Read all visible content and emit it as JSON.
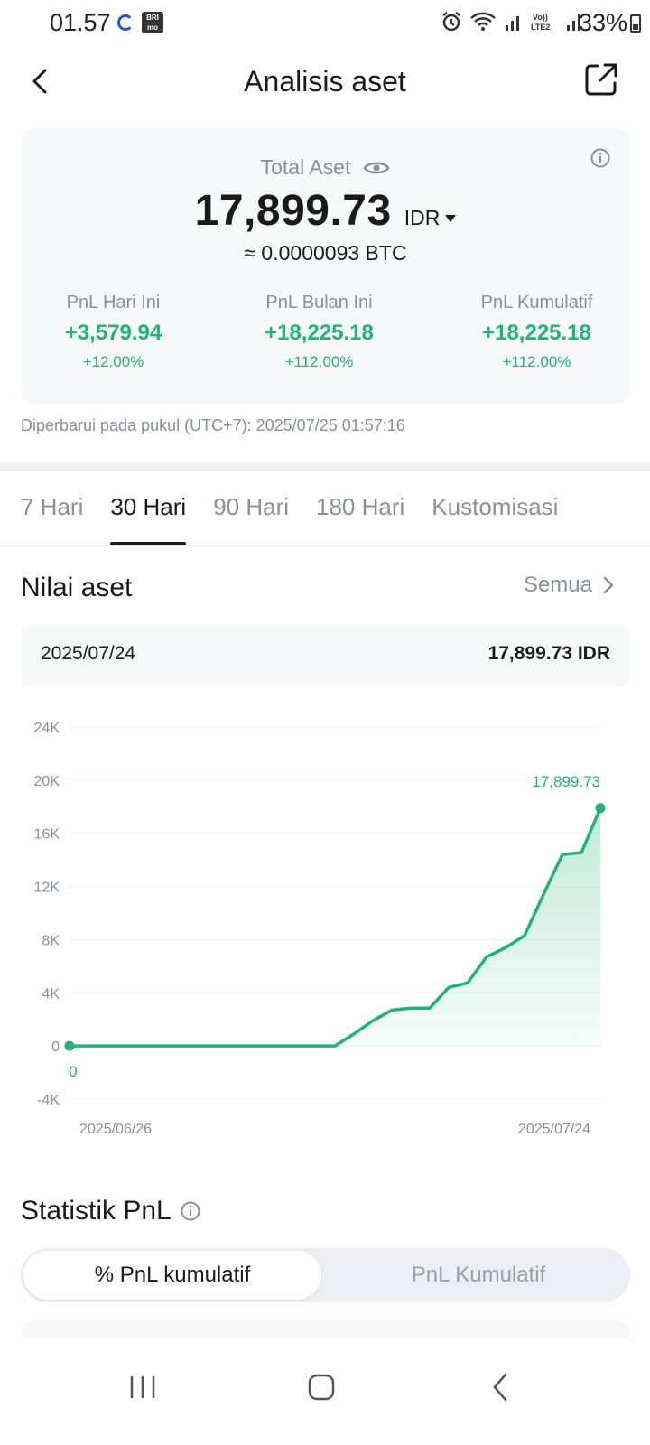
{
  "status_bar": {
    "time": "01.57",
    "icon_badge": "BRI mo",
    "battery": "33%"
  },
  "header": {
    "title": "Analisis aset"
  },
  "asset_summary": {
    "total_label": "Total Aset",
    "total_value": "17,899.73",
    "currency": "IDR",
    "btc_equivalent": "≈ 0.0000093 BTC",
    "pnl": [
      {
        "label": "PnL Hari Ini",
        "value": "+3,579.94",
        "percent": "+12.00%"
      },
      {
        "label": "PnL Bulan Ini",
        "value": "+18,225.18",
        "percent": "+112.00%"
      },
      {
        "label": "PnL Kumulatif",
        "value": "+18,225.18",
        "percent": "+112.00%"
      }
    ]
  },
  "updated_text": "Diperbarui pada pukul (UTC+7): 2025/07/25 01:57:16",
  "tabs": [
    {
      "label": "7 Hari",
      "active": false
    },
    {
      "label": "30 Hari",
      "active": true
    },
    {
      "label": "90 Hari",
      "active": false
    },
    {
      "label": "180 Hari",
      "active": false
    },
    {
      "label": "Kustomisasi",
      "active": false
    }
  ],
  "asset_value_section": {
    "title": "Nilai aset",
    "see_all": "Semua",
    "selected_date": "2025/07/24",
    "selected_value": "17,899.73 IDR"
  },
  "chart_data": {
    "type": "area",
    "y_ticks": [
      "24K",
      "20K",
      "16K",
      "12K",
      "8K",
      "4K",
      "0",
      "-4K"
    ],
    "ylim": [
      -4000,
      24000
    ],
    "x_labels": [
      "2025/06/26",
      "2025/07/24"
    ],
    "start_label": "0",
    "end_label": "17,899.73",
    "series": [
      {
        "values": [
          0,
          0,
          0,
          0,
          0,
          0,
          0,
          0,
          0,
          0,
          0,
          0,
          0,
          0,
          0,
          900,
          1900,
          2700,
          2850,
          2850,
          4400,
          4750,
          6700,
          7400,
          8300,
          11400,
          14400,
          14550,
          17899.73
        ]
      }
    ],
    "line_color": "#21b37a",
    "grid": true
  },
  "pnl_stats": {
    "title": "Statistik PnL",
    "options": [
      {
        "label": "% PnL kumulatif",
        "active": true
      },
      {
        "label": "PnL Kumulatif",
        "active": false
      }
    ]
  },
  "colors": {
    "positive": "#21b37a",
    "muted": "#8a8f98"
  }
}
